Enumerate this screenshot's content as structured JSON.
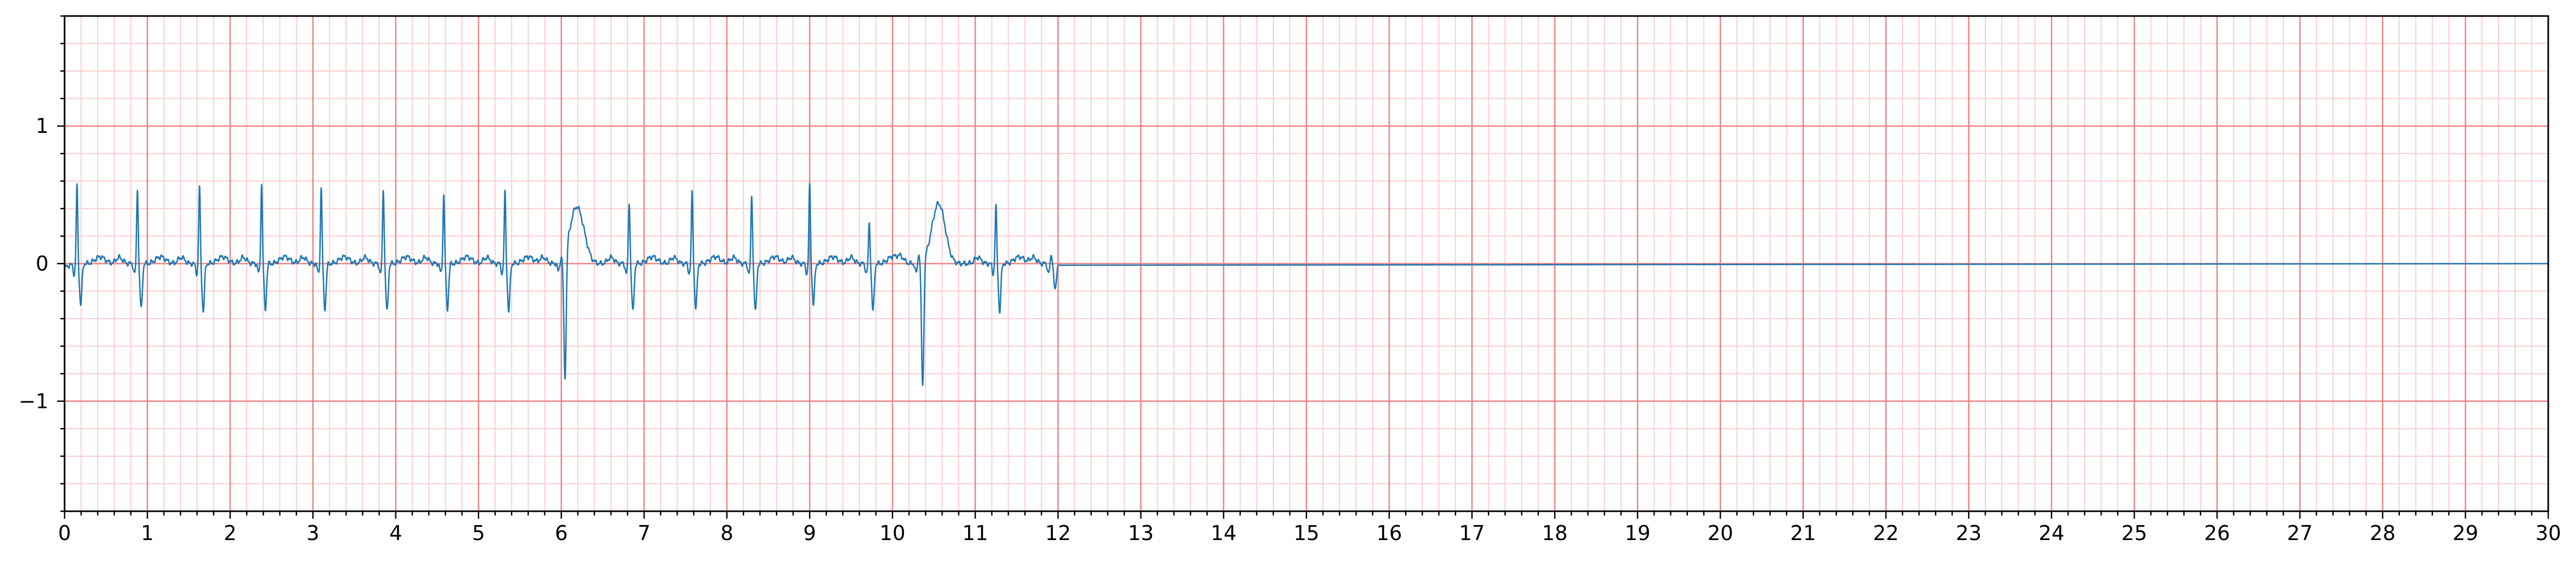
{
  "chart_data": {
    "type": "line",
    "title": "",
    "xlabel": "",
    "ylabel": "",
    "xlim": [
      0,
      30
    ],
    "ylim": [
      -1.8,
      1.8
    ],
    "x_ticks": [
      0,
      1,
      2,
      3,
      4,
      5,
      6,
      7,
      8,
      9,
      10,
      11,
      12,
      13,
      14,
      15,
      16,
      17,
      18,
      19,
      20,
      21,
      22,
      23,
      24,
      25,
      26,
      27,
      28,
      29,
      30
    ],
    "x_tick_labels": [
      "0",
      "1",
      "2",
      "3",
      "4",
      "5",
      "6",
      "7",
      "8",
      "9",
      "10",
      "11",
      "12",
      "13",
      "14",
      "15",
      "16",
      "17",
      "18",
      "19",
      "20",
      "21",
      "22",
      "23",
      "24",
      "25",
      "26",
      "27",
      "28",
      "29",
      "30"
    ],
    "y_ticks": [
      -1,
      0,
      1
    ],
    "y_tick_labels": [
      "−1",
      "0",
      "1"
    ],
    "grid": {
      "major_step_x": 1,
      "minor_step_x": 0.2,
      "major_step_y": 1,
      "minor_step_y": 0.2
    },
    "colors": {
      "major_grid": "#f08080",
      "minor_grid": "#ffcccc",
      "series": "#1f77b4",
      "axes": "#000000"
    },
    "series": [
      {
        "beats": [
          {
            "t": 0.15,
            "r": 0.57,
            "s": -0.3
          },
          {
            "t": 0.88,
            "r": 0.55,
            "s": -0.33
          },
          {
            "t": 1.63,
            "r": 0.56,
            "s": -0.35
          },
          {
            "t": 2.38,
            "r": 0.58,
            "s": -0.33
          },
          {
            "t": 3.1,
            "r": 0.55,
            "s": -0.33
          },
          {
            "t": 3.85,
            "r": 0.55,
            "s": -0.35
          },
          {
            "t": 4.58,
            "r": 0.5,
            "s": -0.33
          },
          {
            "t": 5.32,
            "r": 0.52,
            "s": -0.35
          },
          {
            "t": 6.0,
            "r": 0.02,
            "s": -0.92
          },
          {
            "t": 6.82,
            "r": 0.45,
            "s": -0.35
          },
          {
            "t": 7.58,
            "r": 0.52,
            "s": -0.33
          },
          {
            "t": 8.3,
            "r": 0.5,
            "s": -0.35
          },
          {
            "t": 9.0,
            "r": 0.57,
            "s": -0.3
          },
          {
            "t": 9.72,
            "r": 0.3,
            "s": -0.35
          },
          {
            "t": 10.32,
            "r": 0.08,
            "s": -0.92
          },
          {
            "t": 11.25,
            "r": 0.42,
            "s": -0.35
          },
          {
            "t": 11.92,
            "r": 0.07,
            "s": -0.2
          }
        ],
        "broad_waves": [
          {
            "t": 6.18,
            "amp": 0.4
          },
          {
            "t": 10.55,
            "amp": 0.4
          }
        ],
        "signal_end": 12.0,
        "flat_until": 30,
        "flat_value": 0
      }
    ]
  }
}
